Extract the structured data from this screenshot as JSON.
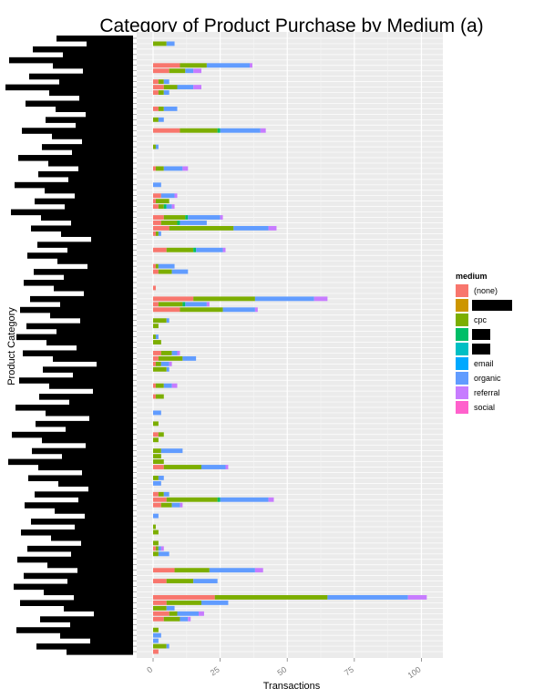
{
  "chart_data": {
    "type": "bar",
    "orientation": "horizontal",
    "stacked": true,
    "title": "Category of Product Purchase by Medium (a)",
    "xlabel": "Transactions",
    "ylabel": "Product Category",
    "xlim": [
      0,
      108
    ],
    "x_ticks": [
      0,
      25,
      50,
      75,
      100
    ],
    "x_tick_labels": [
      "0",
      "25",
      "50",
      "75",
      "100"
    ],
    "grid": true,
    "category_labels_redacted": true,
    "legend": {
      "title": "medium",
      "position": "right",
      "entries": [
        {
          "label": "(none)",
          "color": "#F8766D"
        },
        {
          "label": "",
          "color": "#CD9600"
        },
        {
          "label": "cpc",
          "color": "#7CAE00"
        },
        {
          "label": "",
          "color": "#00BE67"
        },
        {
          "label": "",
          "color": "#00BFC4"
        },
        {
          "label": "email",
          "color": "#00A9FF"
        },
        {
          "label": "organic",
          "color": "#619CFF"
        },
        {
          "label": "referral",
          "color": "#C77CFF"
        },
        {
          "label": "social",
          "color": "#FF61CC"
        }
      ]
    },
    "series_order": [
      "(none)",
      "cpc",
      "cpc2",
      "organic",
      "referral"
    ],
    "series_colors": {
      "(none)": "#F8766D",
      "cpc": "#7CAE00",
      "cpc2": "#00BE67",
      "organic": "#619CFF",
      "referral": "#C77CFF"
    },
    "rows": [
      [
        0,
        0,
        0,
        0,
        0
      ],
      [
        0,
        5,
        0,
        3,
        0
      ],
      [
        0,
        0,
        0,
        0,
        0
      ],
      [
        0,
        0,
        0,
        0,
        0
      ],
      [
        0,
        0,
        0,
        0,
        0
      ],
      [
        10,
        10,
        0,
        16,
        1
      ],
      [
        6,
        6,
        0,
        3,
        3
      ],
      [
        0,
        0,
        0,
        0,
        0
      ],
      [
        2,
        2,
        0,
        2,
        0
      ],
      [
        4,
        5,
        0,
        6,
        3
      ],
      [
        2,
        2,
        0,
        2,
        0
      ],
      [
        0,
        0,
        0,
        0,
        0
      ],
      [
        0,
        0,
        0,
        0,
        0
      ],
      [
        2,
        2,
        0,
        5,
        0
      ],
      [
        0,
        0,
        0,
        0,
        0
      ],
      [
        0,
        2,
        0,
        2,
        0
      ],
      [
        0,
        0,
        0,
        0,
        0
      ],
      [
        10,
        14,
        1,
        15,
        2
      ],
      [
        0,
        0,
        0,
        0,
        0
      ],
      [
        0,
        0,
        0,
        0,
        0
      ],
      [
        0,
        1,
        0,
        1,
        0
      ],
      [
        0,
        0,
        0,
        0,
        0
      ],
      [
        0,
        0,
        0,
        0,
        0
      ],
      [
        0,
        0,
        0,
        0,
        0
      ],
      [
        1,
        3,
        0,
        7,
        2
      ],
      [
        0,
        0,
        0,
        0,
        0
      ],
      [
        0,
        0,
        0,
        0,
        0
      ],
      [
        0,
        0,
        0,
        3,
        0
      ],
      [
        0,
        0,
        0,
        0,
        0
      ],
      [
        3,
        0,
        0,
        5,
        1
      ],
      [
        1,
        5,
        0,
        0,
        0
      ],
      [
        2,
        2,
        1,
        2,
        1
      ],
      [
        0,
        0,
        0,
        0,
        0
      ],
      [
        4,
        8,
        1,
        12,
        1
      ],
      [
        3,
        6,
        1,
        10,
        0
      ],
      [
        6,
        24,
        0,
        13,
        3
      ],
      [
        1,
        1,
        0,
        1,
        0
      ],
      [
        0,
        0,
        0,
        0,
        0
      ],
      [
        0,
        0,
        0,
        0,
        0
      ],
      [
        5,
        10,
        1,
        10,
        1
      ],
      [
        0,
        0,
        0,
        0,
        0
      ],
      [
        0,
        0,
        0,
        0,
        0
      ],
      [
        1,
        1,
        0,
        6,
        0
      ],
      [
        2,
        5,
        0,
        6,
        0
      ],
      [
        0,
        0,
        0,
        0,
        0
      ],
      [
        0,
        0,
        0,
        0,
        0
      ],
      [
        1,
        0,
        0,
        0,
        0
      ],
      [
        0,
        0,
        0,
        0,
        0
      ],
      [
        15,
        23,
        0,
        22,
        5
      ],
      [
        2,
        9,
        1,
        8,
        1
      ],
      [
        10,
        16,
        0,
        12,
        1
      ],
      [
        0,
        0,
        0,
        0,
        0
      ],
      [
        0,
        5,
        0,
        1,
        0
      ],
      [
        0,
        2,
        0,
        0,
        0
      ],
      [
        0,
        0,
        0,
        0,
        0
      ],
      [
        0,
        1,
        0,
        1,
        0
      ],
      [
        0,
        3,
        0,
        0,
        0
      ],
      [
        0,
        0,
        0,
        0,
        0
      ],
      [
        3,
        4,
        0,
        2,
        1
      ],
      [
        2,
        9,
        0,
        5,
        0
      ],
      [
        1,
        2,
        0,
        3,
        1
      ],
      [
        0,
        5,
        0,
        1,
        0
      ],
      [
        0,
        0,
        0,
        0,
        0
      ],
      [
        0,
        0,
        0,
        0,
        0
      ],
      [
        1,
        3,
        0,
        3,
        2
      ],
      [
        0,
        0,
        0,
        0,
        0
      ],
      [
        1,
        3,
        0,
        0,
        0
      ],
      [
        0,
        0,
        0,
        0,
        0
      ],
      [
        0,
        0,
        0,
        0,
        0
      ],
      [
        0,
        0,
        0,
        3,
        0
      ],
      [
        0,
        0,
        0,
        0,
        0
      ],
      [
        0,
        2,
        0,
        0,
        0
      ],
      [
        0,
        0,
        0,
        0,
        0
      ],
      [
        2,
        2,
        0,
        0,
        0
      ],
      [
        0,
        2,
        0,
        0,
        0
      ],
      [
        0,
        0,
        0,
        0,
        0
      ],
      [
        0,
        3,
        0,
        8,
        0
      ],
      [
        0,
        3,
        0,
        0,
        0
      ],
      [
        0,
        4,
        0,
        0,
        0
      ],
      [
        4,
        14,
        0,
        9,
        1
      ],
      [
        0,
        0,
        0,
        0,
        0
      ],
      [
        0,
        2,
        0,
        2,
        0
      ],
      [
        0,
        0,
        0,
        3,
        0
      ],
      [
        0,
        0,
        0,
        0,
        0
      ],
      [
        2,
        2,
        0,
        2,
        0
      ],
      [
        5,
        19,
        1,
        18,
        2
      ],
      [
        3,
        4,
        0,
        3,
        1
      ],
      [
        0,
        0,
        0,
        0,
        0
      ],
      [
        0,
        0,
        0,
        2,
        0
      ],
      [
        0,
        0,
        0,
        0,
        0
      ],
      [
        0,
        1,
        0,
        0,
        0
      ],
      [
        0,
        2,
        0,
        0,
        0
      ],
      [
        0,
        0,
        0,
        0,
        0
      ],
      [
        0,
        2,
        0,
        0,
        0
      ],
      [
        1,
        1,
        0,
        1,
        1
      ],
      [
        0,
        2,
        0,
        4,
        0
      ],
      [
        0,
        0,
        0,
        0,
        0
      ],
      [
        0,
        0,
        0,
        0,
        0
      ],
      [
        8,
        13,
        0,
        17,
        3
      ],
      [
        0,
        0,
        0,
        0,
        0
      ],
      [
        5,
        10,
        0,
        9,
        0
      ],
      [
        0,
        0,
        0,
        0,
        0
      ],
      [
        0,
        0,
        0,
        0,
        0
      ],
      [
        23,
        42,
        0,
        30,
        7
      ],
      [
        5,
        13,
        0,
        10,
        0
      ],
      [
        0,
        5,
        0,
        3,
        0
      ],
      [
        6,
        3,
        0,
        8,
        2
      ],
      [
        4,
        6,
        0,
        3,
        1
      ],
      [
        0,
        0,
        0,
        0,
        0
      ],
      [
        0,
        2,
        0,
        0,
        0
      ],
      [
        0,
        0,
        0,
        3,
        0
      ],
      [
        0,
        0,
        0,
        2,
        0
      ],
      [
        0,
        5,
        0,
        1,
        0
      ],
      [
        2,
        0,
        0,
        0,
        0
      ]
    ]
  }
}
